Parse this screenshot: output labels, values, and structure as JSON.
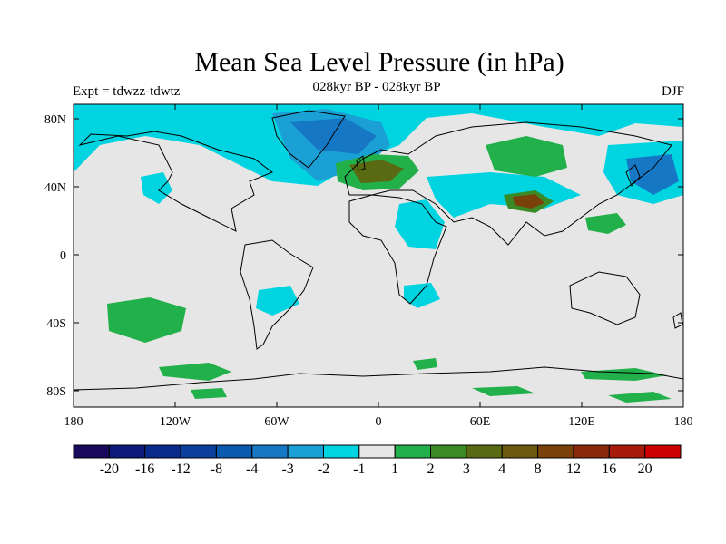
{
  "title": "Mean Sea Level Pressure (in hPa)",
  "subtitle": "028kyr BP - 028kyr BP",
  "experiment": "Expt = tdwzz-tdwtz",
  "season": "DJF",
  "map": {
    "background_color": "#e6e6e6",
    "lat_labels": [
      "80N",
      "40N",
      "0",
      "40S",
      "80S"
    ],
    "lon_labels": [
      "180",
      "120W",
      "60W",
      "0",
      "60E",
      "120E",
      "180"
    ]
  },
  "colorbar": {
    "colors": [
      "#1a0a5c",
      "#0d1a7a",
      "#0a2a8c",
      "#0a3f9e",
      "#0a5ab0",
      "#1677c4",
      "#1aa0d4",
      "#00d4e0",
      "#e6e6e6",
      "#22b04a",
      "#3a8a26",
      "#5a6a12",
      "#6e5a0e",
      "#7a420a",
      "#8a2a0a",
      "#a81a0a",
      "#cc0000"
    ],
    "labels": [
      "-20",
      "-16",
      "-12",
      "-8",
      "-4",
      "-3",
      "-2",
      "-1",
      "1",
      "2",
      "3",
      "4",
      "8",
      "12",
      "16",
      "20"
    ]
  }
}
